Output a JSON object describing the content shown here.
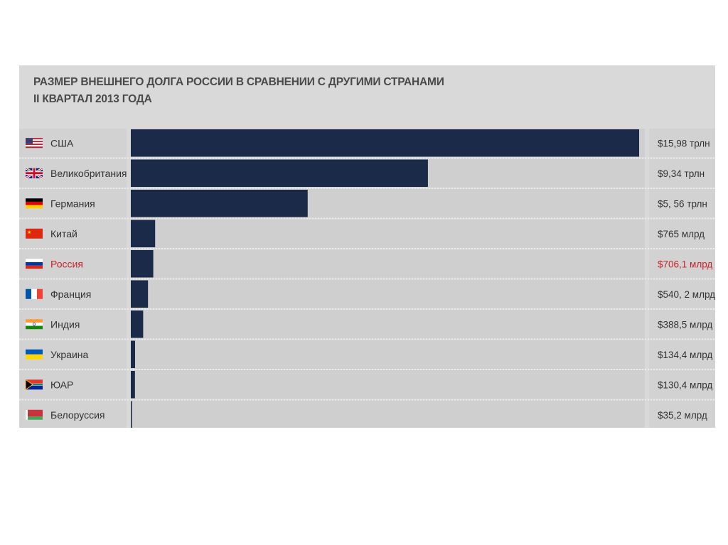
{
  "chart_data": {
    "type": "bar",
    "orientation": "horizontal",
    "title": "РАЗМЕР ВНЕШНЕГО ДОЛГА РОССИИ В СРАВНЕНИИ С ДРУГИМИ СТРАНАМИ",
    "subtitle": "II КВАРТАЛ 2013 ГОДА",
    "categories": [
      "США",
      "Великобритания",
      "Германия",
      "Китай",
      "Россия",
      "Франция",
      "Индия",
      "Украина",
      "ЮАР",
      "Белоруссия"
    ],
    "values": [
      15980,
      9340,
      5560,
      765,
      706.1,
      540.2,
      388.5,
      134.4,
      130.4,
      35.2
    ],
    "value_labels": [
      "$15,98 трлн",
      "$9,34 трлн",
      "$5, 56 трлн",
      "$765 млрд",
      "$706,1 млрд",
      "$540, 2 млрд",
      "$388,5 млрд",
      "$134,4 млрд",
      "$130,4 млрд",
      "$35,2 млрд"
    ],
    "unit": "млрд $",
    "highlight": "Россия",
    "xlim": [
      0,
      15980
    ],
    "grid": false
  },
  "colors": {
    "bar": "#1b2a48",
    "highlight_text": "#c8242b",
    "panel": "#d9d9d9"
  },
  "flag_icons": [
    "flag-usa-icon",
    "flag-uk-icon",
    "flag-germany-icon",
    "flag-china-icon",
    "flag-russia-icon",
    "flag-france-icon",
    "flag-india-icon",
    "flag-ukraine-icon",
    "flag-south-africa-icon",
    "flag-belarus-icon"
  ]
}
